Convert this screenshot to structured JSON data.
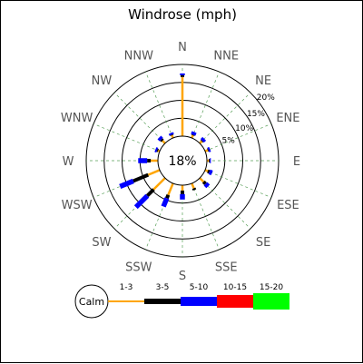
{
  "chart_data": {
    "type": "windrose",
    "title": "Windrose (mph)",
    "calm_percent_label": "18%",
    "calm_legend_label": "Calm",
    "directions": [
      "N",
      "NNE",
      "NE",
      "ENE",
      "E",
      "ESE",
      "SE",
      "SSE",
      "S",
      "SSW",
      "SW",
      "WSW",
      "W",
      "WNW",
      "NW",
      "NNW"
    ],
    "radial_tick_labels": [
      "5%",
      "10%",
      "15%",
      "20%"
    ],
    "radial_max_percent": 20,
    "calm_percent": 18,
    "speed_bins": [
      {
        "label": "1-3",
        "color": "#ffa500"
      },
      {
        "label": "3-5",
        "color": "#000000"
      },
      {
        "label": "5-10",
        "color": "#0000ff"
      },
      {
        "label": "10-15",
        "color": "#ff0000"
      },
      {
        "label": "15-20",
        "color": "#00ff00"
      }
    ],
    "series": [
      {
        "direction": "N",
        "values": [
          16.5,
          0.5,
          0.5,
          0,
          0
        ]
      },
      {
        "direction": "NNE",
        "values": [
          0.8,
          0.2,
          0.8,
          0,
          0
        ]
      },
      {
        "direction": "NE",
        "values": [
          0.8,
          0.2,
          0.8,
          0,
          0
        ]
      },
      {
        "direction": "ENE",
        "values": [
          0.8,
          0.2,
          0.5,
          0,
          0
        ]
      },
      {
        "direction": "E",
        "values": [
          0.5,
          0.3,
          0.3,
          0,
          0
        ]
      },
      {
        "direction": "ESE",
        "values": [
          0.8,
          0.5,
          0.8,
          0,
          0
        ]
      },
      {
        "direction": "SE",
        "values": [
          1.5,
          0.8,
          1.0,
          0,
          0
        ]
      },
      {
        "direction": "SSE",
        "values": [
          1.5,
          0.5,
          0,
          0,
          0
        ]
      },
      {
        "direction": "S",
        "values": [
          1.5,
          1.0,
          1.5,
          0,
          0
        ]
      },
      {
        "direction": "SSW",
        "values": [
          3.5,
          1.0,
          2.5,
          0,
          0
        ]
      },
      {
        "direction": "SW",
        "values": [
          4.5,
          2.5,
          4.5,
          0,
          0
        ]
      },
      {
        "direction": "WSW",
        "values": [
          3.5,
          4.5,
          4.0,
          0,
          0
        ]
      },
      {
        "direction": "W",
        "values": [
          2.0,
          1.0,
          2.5,
          0,
          0
        ]
      },
      {
        "direction": "WNW",
        "values": [
          0.5,
          0.3,
          0.5,
          0,
          0
        ]
      },
      {
        "direction": "NW",
        "values": [
          1.0,
          0.5,
          0.8,
          0,
          0
        ]
      },
      {
        "direction": "NNW",
        "values": [
          0.8,
          0.2,
          0.5,
          0,
          0
        ]
      }
    ]
  }
}
